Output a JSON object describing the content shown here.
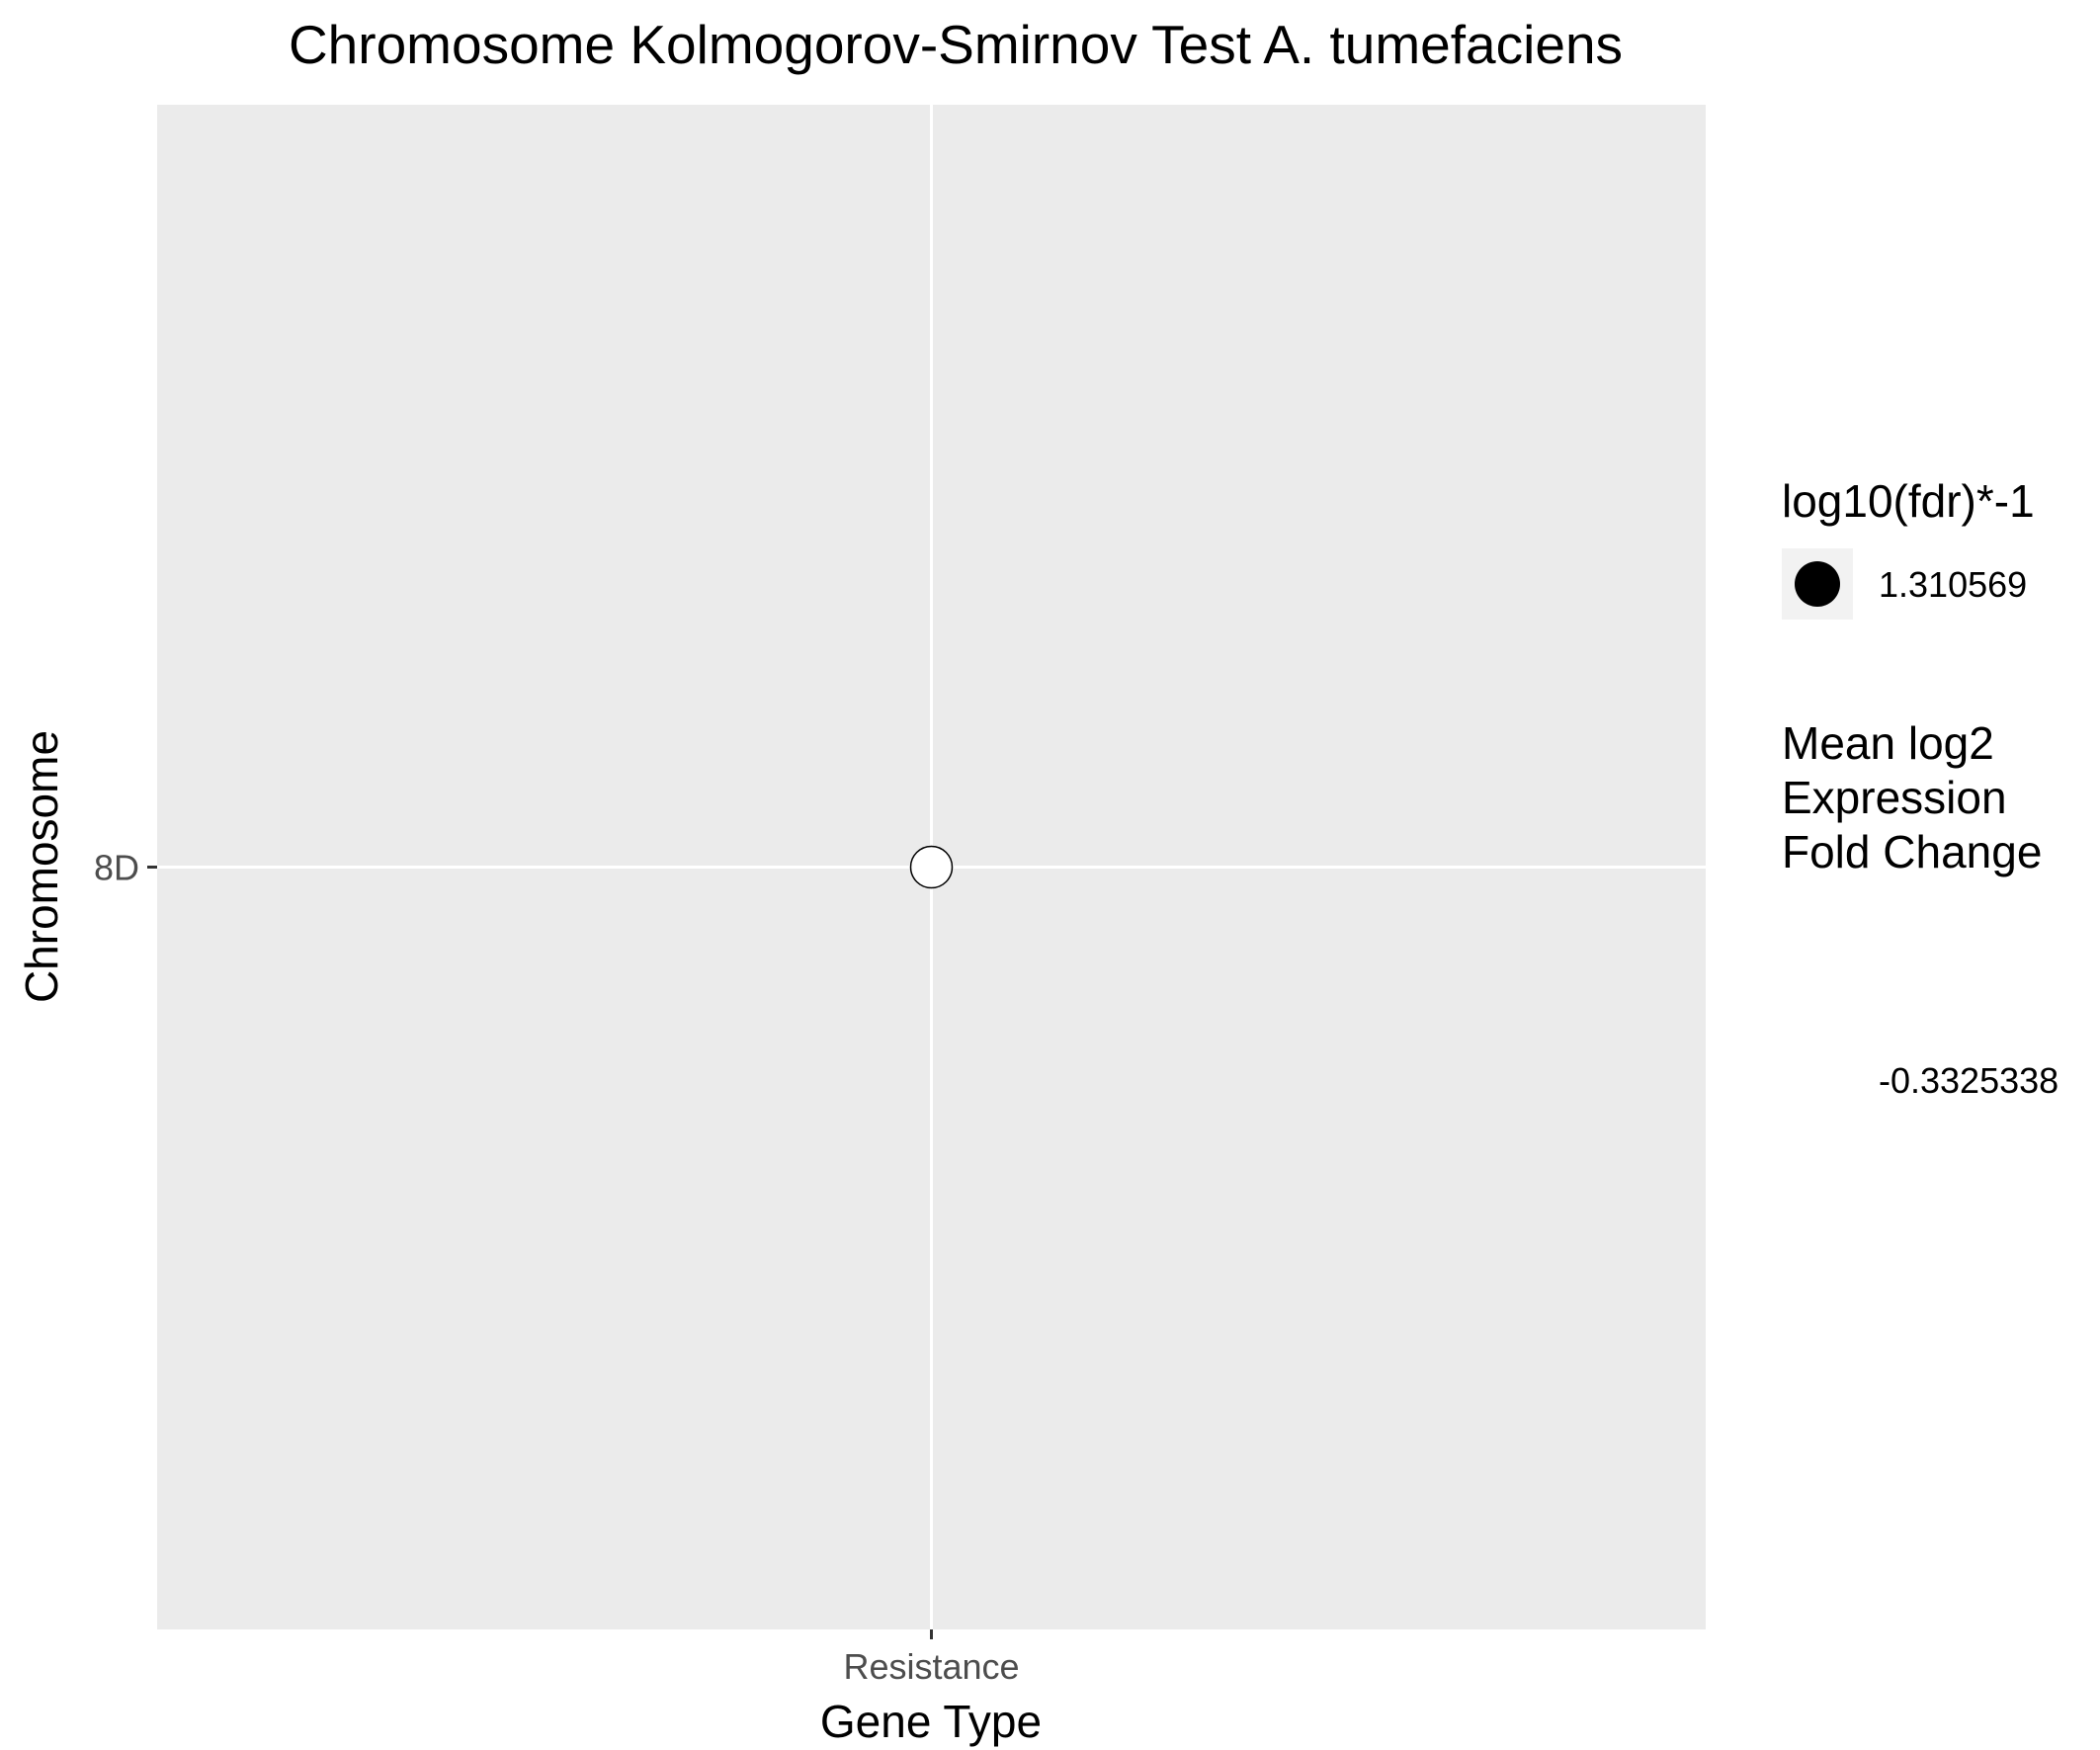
{
  "chart_data": {
    "type": "scatter",
    "title": "Chromosome Kolmogorov-Smirnov Test A. tumefaciens",
    "xlabel": "Gene Type",
    "ylabel": "Chromosome",
    "x_categories": [
      "Resistance"
    ],
    "y_categories": [
      "8D"
    ],
    "points": [
      {
        "x": "Resistance",
        "y": "8D",
        "size_value": 1.310569,
        "color_value": -0.3325338,
        "fill": "#ffffff"
      }
    ],
    "grid": true,
    "panel_background": "#ebebeb",
    "legend_placement": "right",
    "legend": {
      "size": {
        "title": "log10(fdr)*-1",
        "entries": [
          {
            "label": "1.310569"
          }
        ]
      },
      "color": {
        "title_lines": [
          "Mean log2",
          "Expression",
          "Fold Change"
        ],
        "entries": [
          {
            "label": "-0.3325338"
          }
        ]
      }
    }
  }
}
